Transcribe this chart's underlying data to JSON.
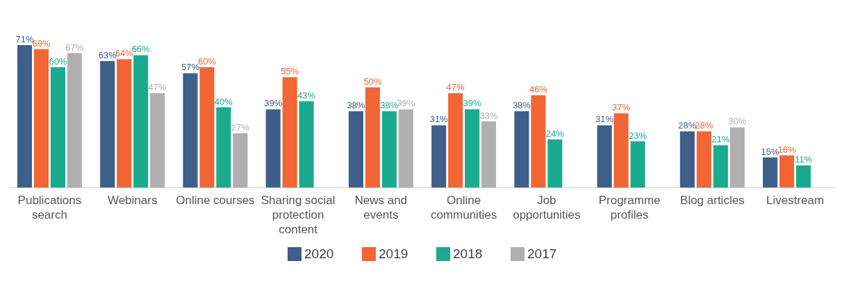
{
  "chart_data": {
    "type": "bar",
    "categories": [
      "Publications search",
      "Webinars",
      "Online courses",
      "Sharing social protection content",
      "News and events",
      "Online communities",
      "Job opportunities",
      "Programme profiles",
      "Blog articles",
      "Livestream"
    ],
    "series": [
      {
        "name": "2020",
        "color": "#3e5f8a",
        "values": [
          71,
          63,
          57,
          39,
          38,
          31,
          38,
          31,
          28,
          15
        ],
        "value_labels": [
          "71%",
          "63%",
          "57%",
          "39%",
          "38%",
          "31%",
          "38%",
          "31%",
          "28%",
          "15%"
        ]
      },
      {
        "name": "2019",
        "color": "#f26535",
        "values": [
          69,
          64,
          60,
          55,
          50,
          47,
          46,
          37,
          28,
          16
        ],
        "value_labels": [
          "69%",
          "64%",
          "60%",
          "55%",
          "50%",
          "47%",
          "46%",
          "37%",
          "28%",
          "16%"
        ]
      },
      {
        "name": "2018",
        "color": "#1aab8e",
        "values": [
          60,
          66,
          40,
          43,
          38,
          39,
          24,
          23,
          21,
          11
        ],
        "value_labels": [
          "60%",
          "66%",
          "40%",
          "43%",
          "38%",
          "39%",
          "24%",
          "23%",
          "21%",
          "11%"
        ]
      },
      {
        "name": "2017",
        "color": "#b0b0b0",
        "values": [
          67,
          47,
          27,
          null,
          39,
          33,
          null,
          null,
          30,
          null
        ],
        "value_labels": [
          "67%",
          "47%",
          "27%",
          null,
          "39%",
          "33%",
          null,
          null,
          "30%",
          null
        ]
      }
    ],
    "legend": "bottom"
  }
}
